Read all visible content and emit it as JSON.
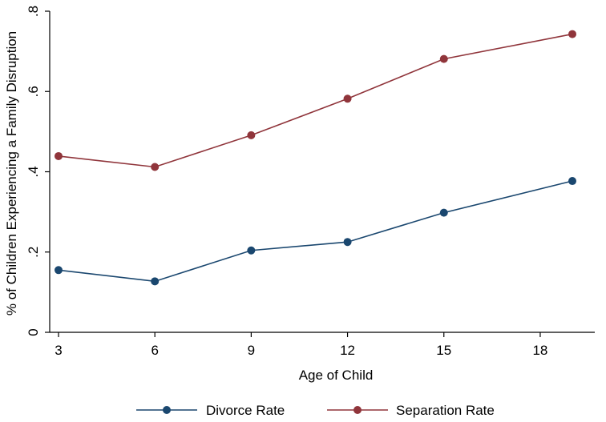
{
  "chart_data": {
    "type": "line",
    "title": "",
    "xlabel": "Age of Child",
    "ylabel": "% of Children Experiencing a Family Disruption",
    "x": [
      3,
      6,
      9,
      12,
      15,
      18
    ],
    "x_last": 19,
    "x_ticks": [
      3,
      6,
      9,
      12,
      15,
      18
    ],
    "x_tick_labels": [
      "3",
      "6",
      "9",
      "12",
      "15",
      "18"
    ],
    "y_ticks": [
      0,
      0.2,
      0.4,
      0.6,
      0.8
    ],
    "y_tick_labels": [
      "0",
      ".2",
      ".4",
      ".6",
      ".8"
    ],
    "xlim": [
      3,
      19
    ],
    "ylim": [
      0,
      0.8
    ],
    "grid": false,
    "legend_position": "bottom",
    "series": [
      {
        "name": "Divorce Rate",
        "color": "#1a476f",
        "x": [
          3,
          6,
          9,
          12,
          15,
          19
        ],
        "values": [
          0.155,
          0.127,
          0.204,
          0.225,
          0.298,
          0.377
        ]
      },
      {
        "name": "Separation Rate",
        "color": "#90353b",
        "x": [
          3,
          6,
          9,
          12,
          15,
          19
        ],
        "values": [
          0.439,
          0.412,
          0.491,
          0.582,
          0.681,
          0.743
        ]
      }
    ]
  }
}
